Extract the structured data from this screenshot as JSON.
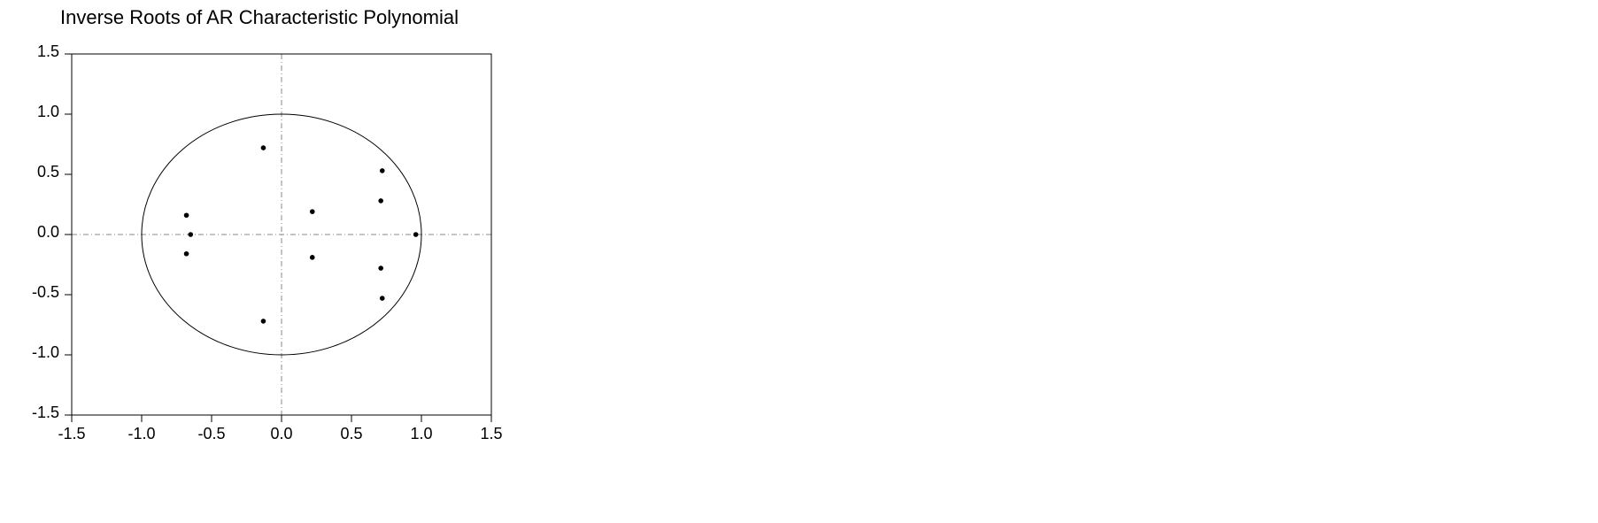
{
  "chart_data": {
    "type": "scatter",
    "title": "Inverse Roots of AR Characteristic Polynomial",
    "x": [
      -0.13,
      -0.13,
      0.72,
      0.72,
      0.71,
      0.71,
      0.22,
      0.22,
      0.96,
      -0.68,
      -0.65,
      -0.68
    ],
    "y": [
      0.72,
      -0.72,
      0.53,
      -0.53,
      0.28,
      -0.28,
      0.19,
      -0.19,
      0.0,
      0.16,
      0.0,
      -0.16
    ],
    "color": "#000000",
    "xlim": [
      -1.5,
      1.5
    ],
    "ylim": [
      -1.5,
      1.5
    ],
    "xticks": [
      {
        "value": -1.5,
        "label": "-1.5"
      },
      {
        "value": -1,
        "label": "-1.0"
      },
      {
        "value": -0.5,
        "label": "-0.5"
      },
      {
        "value": 0,
        "label": "0.0"
      },
      {
        "value": 0.5,
        "label": "0.5"
      },
      {
        "value": 1,
        "label": "1.0"
      },
      {
        "value": 1.5,
        "label": "1.5"
      }
    ],
    "yticks": [
      {
        "value": -1.5,
        "label": "-1.5"
      },
      {
        "value": -1,
        "label": "-1.0"
      },
      {
        "value": -0.5,
        "label": "-0.5"
      },
      {
        "value": 0,
        "label": "0.0"
      },
      {
        "value": 0.5,
        "label": "0.5"
      },
      {
        "value": 1,
        "label": "1.0"
      },
      {
        "value": 1.5,
        "label": "1.5"
      }
    ]
  }
}
